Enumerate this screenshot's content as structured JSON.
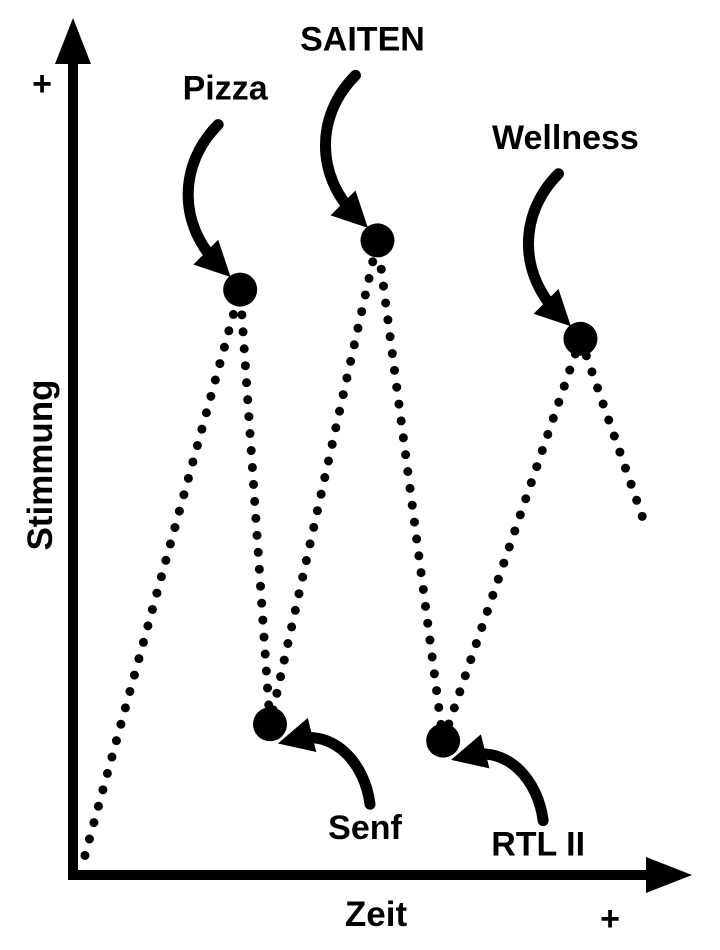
{
  "chart_data": {
    "type": "line",
    "xlabel": "Zeit",
    "ylabel": "Stimmung",
    "x_plus_label": "+",
    "y_plus_label": "+",
    "xlim": [
      0,
      100
    ],
    "ylim": [
      0,
      100
    ],
    "grid": false,
    "legend": "none",
    "line_style": "dotted",
    "color": "#000000",
    "series": [
      {
        "points": [
          {
            "x": 2,
            "y": 3
          },
          {
            "x": 28,
            "y": 72
          },
          {
            "x": 33,
            "y": 19
          },
          {
            "x": 51,
            "y": 78
          },
          {
            "x": 62,
            "y": 17
          },
          {
            "x": 85,
            "y": 66
          },
          {
            "x": 96,
            "y": 43
          }
        ]
      }
    ],
    "annotations": [
      {
        "text": "Pizza",
        "point": 1
      },
      {
        "text": "Senf",
        "point": 2
      },
      {
        "text": "SAITEN",
        "point": 3
      },
      {
        "text": "RTL II",
        "point": 4
      },
      {
        "text": "Wellness",
        "point": 5
      }
    ]
  }
}
